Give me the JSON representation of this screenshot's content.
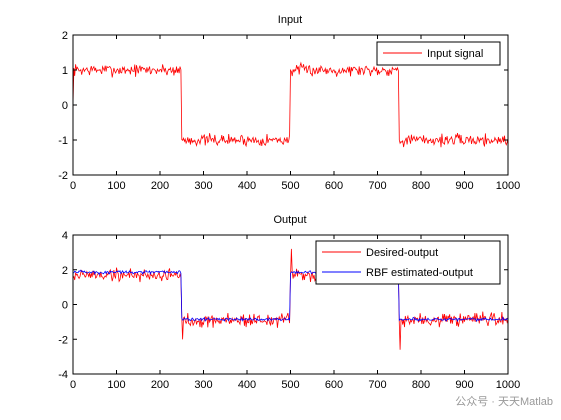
{
  "chart_data": [
    {
      "type": "line",
      "title": "Input",
      "xlabel": "",
      "ylabel": "",
      "xlim": [
        0,
        1000
      ],
      "ylim": [
        -2,
        2
      ],
      "xticks": [
        "0",
        "100",
        "200",
        "300",
        "400",
        "500",
        "600",
        "700",
        "800",
        "900",
        "1000"
      ],
      "yticks": [
        "2",
        "1",
        "0",
        "-1",
        "-2"
      ],
      "grid": false,
      "legend_position": "top-right",
      "series": [
        {
          "name": "Input signal",
          "color": "#ff0000",
          "segments": [
            {
              "from": 0,
              "to": 250,
              "level": 1
            },
            {
              "from": 250,
              "to": 500,
              "level": -1
            },
            {
              "from": 500,
              "to": 750,
              "level": 1
            },
            {
              "from": 750,
              "to": 1000,
              "level": -1
            }
          ],
          "start_value": 0,
          "noise_amplitude": 0.15
        }
      ]
    },
    {
      "type": "line",
      "title": "Output",
      "xlabel": "",
      "ylabel": "",
      "xlim": [
        0,
        1000
      ],
      "ylim": [
        -4,
        4
      ],
      "xticks": [
        "0",
        "100",
        "200",
        "300",
        "400",
        "500",
        "600",
        "700",
        "800",
        "900",
        "1000"
      ],
      "yticks": [
        "4",
        "2",
        "0",
        "-2",
        "-4"
      ],
      "grid": false,
      "legend_position": "top-right",
      "series": [
        {
          "name": "Desired-output",
          "color": "#ff0000",
          "segments": [
            {
              "from": 0,
              "to": 250,
              "level": 1.7
            },
            {
              "from": 250,
              "to": 500,
              "level": -0.9
            },
            {
              "from": 500,
              "to": 750,
              "level": 1.7
            },
            {
              "from": 750,
              "to": 1000,
              "level": -0.9
            }
          ],
          "spikes": [
            {
              "x": 252,
              "y": -2.0
            },
            {
              "x": 502,
              "y": 3.2
            },
            {
              "x": 752,
              "y": -2.6
            }
          ],
          "noise_amplitude": 0.35
        },
        {
          "name": "RBF estimated-output",
          "color": "#0000ff",
          "segments": [
            {
              "from": 0,
              "to": 250,
              "level": 1.85
            },
            {
              "from": 250,
              "to": 500,
              "level": -0.85
            },
            {
              "from": 500,
              "to": 750,
              "level": 1.85
            },
            {
              "from": 750,
              "to": 1000,
              "level": -0.85
            }
          ],
          "noise_amplitude": 0.08
        }
      ]
    }
  ],
  "watermark": "公众号 · 天天Matlab"
}
